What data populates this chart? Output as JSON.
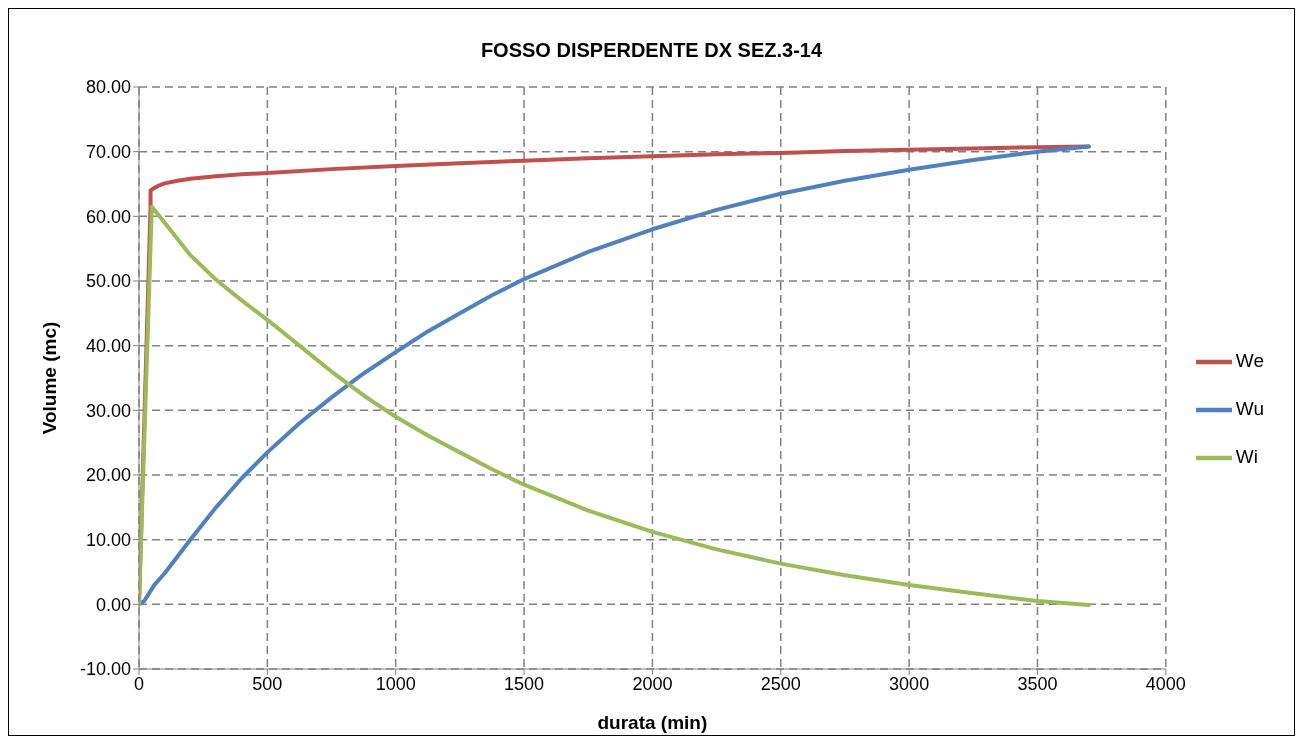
{
  "chart_data": {
    "type": "line",
    "title": "FOSSO DISPERDENTE DX SEZ.3-14",
    "xlabel": "durata (min)",
    "ylabel": "Volume (mc)",
    "xlim": [
      0,
      4000
    ],
    "xticks": [
      0,
      500,
      1000,
      1500,
      2000,
      2500,
      3000,
      3500,
      4000
    ],
    "ylim": [
      -10,
      80
    ],
    "yticks": [
      {
        "value": -10,
        "label": "-10.00"
      },
      {
        "value": 0,
        "label": "0.00"
      },
      {
        "value": 10,
        "label": "10.00"
      },
      {
        "value": 20,
        "label": "20.00"
      },
      {
        "value": 30,
        "label": "30.00"
      },
      {
        "value": 40,
        "label": "40.00"
      },
      {
        "value": 50,
        "label": "50.00"
      },
      {
        "value": 60,
        "label": "60.00"
      },
      {
        "value": 70,
        "label": "70.00"
      },
      {
        "value": 80,
        "label": "80.00"
      }
    ],
    "grid": true,
    "legend": "right",
    "marker": "none",
    "line_style": "solid",
    "series": [
      {
        "name": "We",
        "color": "#c0504d",
        "x": [
          0,
          45,
          45,
          60,
          80,
          100,
          150,
          200,
          300,
          400,
          500,
          750,
          1000,
          1250,
          1500,
          1750,
          2000,
          2250,
          2500,
          2750,
          3000,
          3250,
          3500,
          3700
        ],
        "values": [
          0,
          61.5,
          64,
          64.4,
          64.8,
          65.1,
          65.5,
          65.8,
          66.2,
          66.5,
          66.7,
          67.3,
          67.8,
          68.2,
          68.6,
          69,
          69.3,
          69.6,
          69.8,
          70.1,
          70.3,
          70.5,
          70.7,
          70.8
        ]
      },
      {
        "name": "Wu",
        "color": "#4f81bd",
        "x": [
          0,
          20,
          60,
          100,
          200,
          300,
          400,
          500,
          625,
          750,
          875,
          1000,
          1125,
          1250,
          1375,
          1500,
          1750,
          2000,
          2250,
          2500,
          2750,
          3000,
          3250,
          3500,
          3700
        ],
        "values": [
          0,
          0.5,
          3,
          4.8,
          10,
          15,
          19.5,
          23.5,
          28,
          32,
          35.7,
          39,
          42.2,
          45,
          47.8,
          50.3,
          54.5,
          58,
          61,
          63.5,
          65.5,
          67.2,
          68.7,
          70,
          70.8
        ]
      },
      {
        "name": "Wi",
        "color": "#9bbb59",
        "x": [
          0,
          50,
          100,
          200,
          300,
          400,
          500,
          625,
          750,
          875,
          1000,
          1125,
          1250,
          1375,
          1500,
          1750,
          2000,
          2250,
          2500,
          2750,
          3000,
          3250,
          3500,
          3700
        ],
        "values": [
          0,
          61.5,
          59,
          54,
          50.2,
          47,
          44,
          40,
          36,
          32.3,
          29,
          26.1,
          23.5,
          20.9,
          18.5,
          14.5,
          11.2,
          8.5,
          6.3,
          4.5,
          3,
          1.7,
          0.5,
          -0.1
        ]
      }
    ]
  }
}
